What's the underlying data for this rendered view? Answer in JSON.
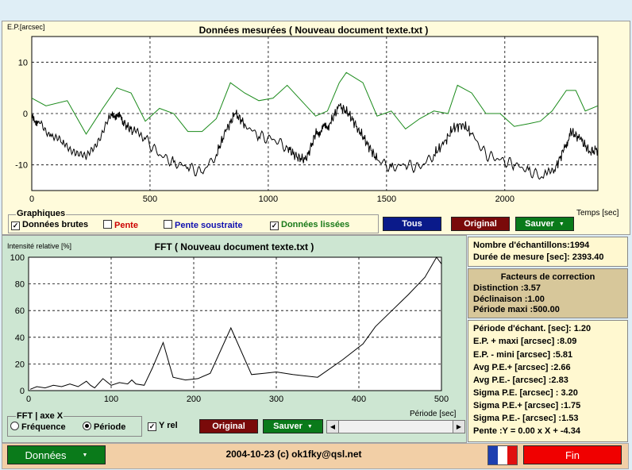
{
  "top_chart": {
    "ylabel": "E.P.[arcsec]",
    "title": "Données mesurées ( Nouveau document texte.txt )",
    "xlabel": "Temps [sec]"
  },
  "graphiques": {
    "group_label": "Graphiques",
    "items": [
      {
        "label": "Données brutes",
        "checked": true,
        "color": "#000000"
      },
      {
        "label": "Pente",
        "checked": false,
        "color": "#cc0000"
      },
      {
        "label": "Pente soustraite",
        "checked": false,
        "color": "#1010b0"
      },
      {
        "label": "Données lissées",
        "checked": true,
        "color": "#1a7a1a"
      }
    ],
    "tous_label": "Tous",
    "original_label": "Original",
    "sauver_label": "Sauver"
  },
  "fft_chart": {
    "ylabel": "Intensité relative [%]",
    "title": "FFT ( Nouveau document texte.txt )",
    "xlabel": "Période [sec]"
  },
  "fft_controls": {
    "axis_group_label": "FFT | axe X",
    "option_frequence": "Fréquence",
    "option_periode": "Période",
    "selected": "Période",
    "yrel_label": "Y rel",
    "yrel_checked": true,
    "original_label": "Original",
    "sauver_label": "Sauver"
  },
  "info1": {
    "line1": "Nombre d'échantillons:1994",
    "line2": "Durée de mesure [sec]: 2393.40"
  },
  "correction": {
    "title1": "Facteurs de correction",
    "distinction": "Distinction :3.57",
    "declinaison": "Déclinaison :1.00",
    "periode_maxi": "Période maxi :500.00"
  },
  "stats": [
    "Période d'échant. [sec]: 1.20",
    "E.P. + maxi [arcsec] :8.09",
    "E.P. - mini [arcsec] :5.81",
    "Avg P.E.+ [arcsec] :2.66",
    "Avg P.E.- [arcsec] :2.83",
    "Sigma P.E. [arcsec] : 3.20",
    "Sigma P.E.+ [arcsec] :1.75",
    "Sigma P.E.- [arcsec] :1.53",
    "Pente :Y = 0.00 x X + -4.34"
  ],
  "footer": {
    "donnees_label": "Données",
    "copyright": "2004-10-23 (c) ok1fky@qsl.net",
    "fin_label": "Fin"
  },
  "colors": {
    "btn_blue": "#0a1a8a",
    "btn_red": "#7a0a0a",
    "btn_green": "#0a7a1a",
    "fin_red": "#f00000",
    "footer_bg": "#f2cfa6",
    "smooth_line": "#1a8a1a"
  },
  "chart_data": [
    {
      "type": "line",
      "title": "Données mesurées ( Nouveau document texte.txt )",
      "ylabel": "E.P.[arcsec]",
      "xlabel": "Temps [sec]",
      "xlim": [
        0,
        2393.4
      ],
      "ylim": [
        -15,
        15
      ],
      "xticks": [
        0,
        500,
        1000,
        1500,
        2000
      ],
      "yticks": [
        10,
        0,
        -10
      ],
      "grid": true,
      "series": [
        {
          "color": "#1a8a1a",
          "x": [
            0,
            60,
            150,
            230,
            300,
            360,
            420,
            480,
            540,
            600,
            660,
            720,
            780,
            840,
            900,
            960,
            1020,
            1080,
            1140,
            1200,
            1250,
            1300,
            1330,
            1400,
            1460,
            1520,
            1580,
            1640,
            1700,
            1760,
            1800,
            1860,
            1920,
            1980,
            2040,
            2100,
            2150,
            2200,
            2260,
            2300,
            2340,
            2393
          ],
          "y": [
            3,
            1.5,
            2.5,
            -4,
            1,
            5,
            4,
            -1.5,
            1,
            0,
            -3.5,
            -3.5,
            -1,
            6,
            4,
            2.5,
            3,
            5.5,
            2.5,
            -0.5,
            0.5,
            6,
            8,
            6,
            -0.5,
            0.5,
            -3,
            -1,
            0.5,
            0,
            5.5,
            4,
            0,
            0,
            -2.5,
            -2,
            -1.5,
            0.5,
            4.5,
            4.5,
            0.5,
            1.5
          ]
        },
        {
          "color": "#000000",
          "x": [
            0,
            30,
            80,
            130,
            180,
            230,
            280,
            330,
            360,
            390,
            430,
            480,
            540,
            600,
            660,
            720,
            780,
            820,
            860,
            900,
            960,
            1020,
            1080,
            1120,
            1160,
            1200,
            1230,
            1260,
            1300,
            1340,
            1380,
            1420,
            1460,
            1520,
            1580,
            1640,
            1700,
            1740,
            1780,
            1820,
            1860,
            1920,
            1980,
            2040,
            2100,
            2160,
            2210,
            2250,
            2280,
            2320,
            2360,
            2393
          ],
          "y": [
            -1,
            -1.5,
            -4,
            -6,
            -7,
            -9,
            -5,
            -1,
            0,
            -2,
            -3.5,
            -5,
            -8,
            -9.5,
            -10.5,
            -11.5,
            -8,
            -3.5,
            0,
            -2,
            -4.5,
            -5,
            -6.5,
            -8.5,
            -9,
            -4,
            -3,
            -2,
            1.5,
            0,
            -3,
            -6,
            -9,
            -10.5,
            -10,
            -10.5,
            -8,
            -6,
            -3,
            -2,
            -4,
            -8,
            -9,
            -10,
            -11,
            -12.5,
            -11,
            -7,
            -3.5,
            -5,
            -7.5,
            -7
          ]
        }
      ]
    },
    {
      "type": "line",
      "title": "FFT ( Nouveau document texte.txt )",
      "ylabel": "Intensité relative [%]",
      "xlabel": "Période [sec]",
      "xlim": [
        0,
        500
      ],
      "ylim": [
        0,
        100
      ],
      "xticks": [
        0,
        100,
        200,
        300,
        400,
        500
      ],
      "yticks": [
        0,
        20,
        40,
        60,
        80,
        100
      ],
      "grid": true,
      "series": [
        {
          "color": "#000000",
          "x": [
            2,
            10,
            20,
            30,
            40,
            50,
            60,
            70,
            75,
            80,
            90,
            100,
            110,
            120,
            125,
            130,
            140,
            150,
            163,
            175,
            190,
            205,
            220,
            245,
            270,
            285,
            300,
            320,
            350,
            380,
            405,
            420,
            440,
            460,
            480,
            494,
            500
          ],
          "y": [
            1,
            3,
            2,
            4,
            3,
            5,
            3,
            7,
            4,
            2,
            9,
            4,
            6,
            5,
            8,
            5,
            4,
            17,
            36,
            10,
            8,
            9,
            13,
            47,
            12,
            13,
            14,
            12,
            10,
            23,
            35,
            48,
            60,
            72,
            85,
            100,
            95
          ]
        }
      ]
    }
  ]
}
